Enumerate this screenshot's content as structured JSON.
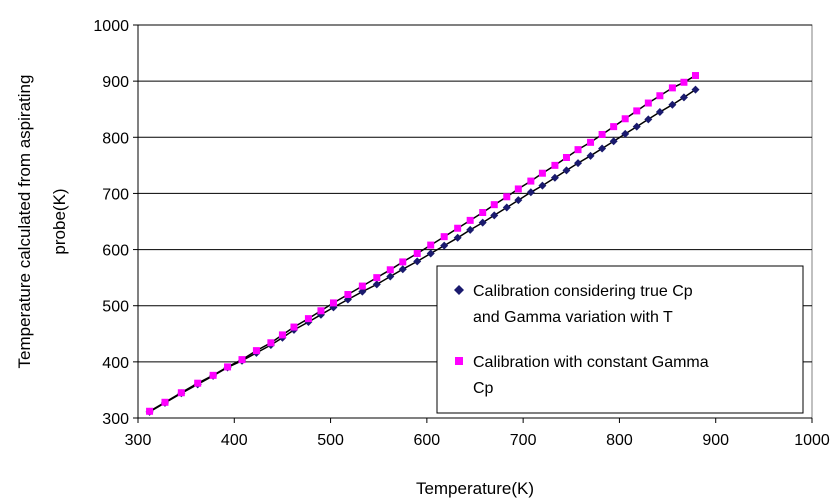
{
  "chart_data": {
    "type": "scatter",
    "title": "",
    "xlabel": "Temperature(K)",
    "ylabel_lines": [
      "Temperature calculated from aspirating",
      "probe(K)"
    ],
    "xlim": [
      300,
      1000
    ],
    "ylim": [
      300,
      1000
    ],
    "x_ticks": [
      300,
      400,
      500,
      600,
      700,
      800,
      900,
      1000
    ],
    "y_ticks": [
      300,
      400,
      500,
      600,
      700,
      800,
      900,
      1000
    ],
    "grid": "horizontal",
    "legend_position": "bottom-right",
    "series": [
      {
        "name_lines": [
          "Calibration considering true Cp",
          "and Gamma variation with T"
        ],
        "marker": "diamond",
        "color": "#1a1a6e",
        "x": [
          312,
          328,
          345,
          362,
          378,
          393,
          408,
          423,
          438,
          450,
          462,
          477,
          490,
          503,
          518,
          533,
          548,
          562,
          575,
          590,
          604,
          618,
          632,
          645,
          658,
          670,
          683,
          695,
          708,
          720,
          733,
          745,
          757,
          770,
          782,
          794,
          806,
          818,
          830,
          842,
          855,
          867,
          879
        ],
        "y": [
          311,
          327,
          344,
          360,
          375,
          390,
          402,
          416,
          430,
          443,
          457,
          471,
          484,
          497,
          511,
          525,
          538,
          552,
          565,
          579,
          593,
          607,
          621,
          635,
          648,
          661,
          675,
          688,
          702,
          714,
          728,
          741,
          754,
          767,
          780,
          793,
          806,
          819,
          832,
          845,
          858,
          871,
          885
        ]
      },
      {
        "name_lines": [
          "Calibration with constant Gamma",
          "Cp"
        ],
        "marker": "square",
        "color": "#ff00ff",
        "x": [
          312,
          328,
          345,
          362,
          378,
          393,
          408,
          423,
          438,
          450,
          462,
          477,
          490,
          503,
          518,
          533,
          548,
          562,
          575,
          590,
          604,
          618,
          632,
          645,
          658,
          670,
          683,
          695,
          708,
          720,
          733,
          745,
          757,
          770,
          782,
          794,
          806,
          818,
          830,
          842,
          855,
          867,
          879
        ],
        "y": [
          312,
          328,
          345,
          362,
          376,
          391,
          404,
          420,
          434,
          448,
          462,
          477,
          491,
          505,
          520,
          535,
          550,
          564,
          578,
          593,
          608,
          623,
          638,
          652,
          666,
          680,
          694,
          708,
          722,
          736,
          750,
          764,
          778,
          791,
          805,
          819,
          833,
          847,
          861,
          874,
          888,
          898,
          910
        ]
      }
    ]
  }
}
